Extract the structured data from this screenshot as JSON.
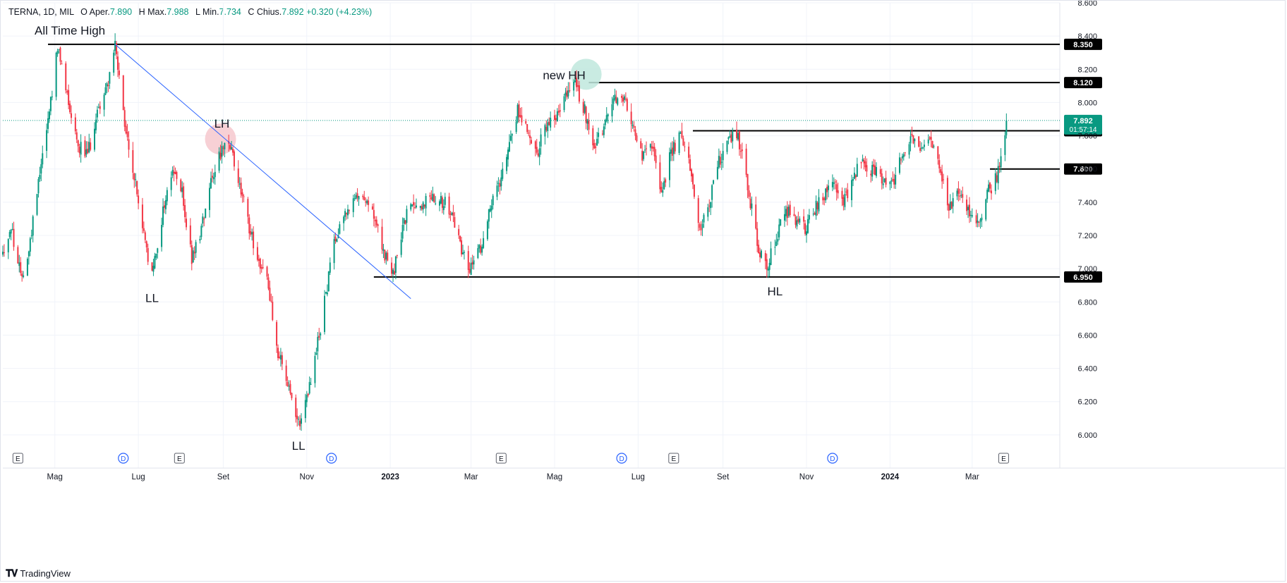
{
  "header": {
    "symbol": "TERNA, 1D, MIL",
    "open_label": "O",
    "open_name": "Aper.",
    "open": "7.890",
    "high_label": "H",
    "high_name": "Max.",
    "high": "7.988",
    "low_label": "L",
    "low_name": "Min.",
    "low": "7.734",
    "close_label": "C",
    "close_name": "Chius.",
    "close": "7.892",
    "change": "+0.320 (+4.23%)"
  },
  "branding": {
    "name": "TradingView"
  },
  "colors": {
    "up": "#089981",
    "down": "#f23645",
    "trendline": "#2962ff",
    "price_line": "#089981",
    "level_line": "#000000",
    "grid": "#f0f3fa"
  },
  "chart_data": {
    "type": "candlestick",
    "ylim": [
      5.8,
      8.6
    ],
    "yticks": [
      "8.600",
      "8.400",
      "8.200",
      "8.000",
      "7.800",
      "7.600",
      "7.400",
      "7.200",
      "7.000",
      "6.800",
      "6.600",
      "6.400",
      "6.200",
      "6.000",
      "5.800"
    ],
    "xlabels": [
      {
        "date": "2022-05-01",
        "label": "Mag"
      },
      {
        "date": "2022-07-01",
        "label": "Lug"
      },
      {
        "date": "2022-09-01",
        "label": "Set"
      },
      {
        "date": "2022-11-01",
        "label": "Nov"
      },
      {
        "date": "2023-01-01",
        "label": "2023",
        "bold": true
      },
      {
        "date": "2023-03-01",
        "label": "Mar"
      },
      {
        "date": "2023-05-01",
        "label": "Mag"
      },
      {
        "date": "2023-07-01",
        "label": "Lug"
      },
      {
        "date": "2023-09-01",
        "label": "Set"
      },
      {
        "date": "2023-11-01",
        "label": "Nov"
      },
      {
        "date": "2024-01-01",
        "label": "2024",
        "bold": true
      },
      {
        "date": "2024-03-01",
        "label": "Mar"
      }
    ],
    "x_domain": [
      "2022-03-24",
      "2024-05-04"
    ],
    "series_path": [
      [
        "2022-03-24",
        7.1
      ],
      [
        "2022-03-30",
        7.25
      ],
      [
        "2022-04-06",
        6.95
      ],
      [
        "2022-04-12",
        7.1
      ],
      [
        "2022-04-19",
        7.55
      ],
      [
        "2022-04-26",
        7.9
      ],
      [
        "2022-05-03",
        8.32
      ],
      [
        "2022-05-10",
        8.05
      ],
      [
        "2022-05-18",
        7.75
      ],
      [
        "2022-05-25",
        7.68
      ],
      [
        "2022-06-01",
        7.95
      ],
      [
        "2022-06-08",
        8.1
      ],
      [
        "2022-06-14",
        8.34
      ],
      [
        "2022-06-21",
        7.85
      ],
      [
        "2022-06-28",
        7.55
      ],
      [
        "2022-07-05",
        7.2
      ],
      [
        "2022-07-11",
        6.95
      ],
      [
        "2022-07-19",
        7.35
      ],
      [
        "2022-07-26",
        7.6
      ],
      [
        "2022-08-02",
        7.45
      ],
      [
        "2022-08-09",
        7.05
      ],
      [
        "2022-08-16",
        7.25
      ],
      [
        "2022-08-23",
        7.55
      ],
      [
        "2022-08-30",
        7.7
      ],
      [
        "2022-09-06",
        7.73
      ],
      [
        "2022-09-13",
        7.5
      ],
      [
        "2022-09-20",
        7.25
      ],
      [
        "2022-09-27",
        7.05
      ],
      [
        "2022-10-04",
        6.9
      ],
      [
        "2022-10-11",
        6.5
      ],
      [
        "2022-10-18",
        6.3
      ],
      [
        "2022-10-25",
        6.05
      ],
      [
        "2022-11-01",
        6.2
      ],
      [
        "2022-11-08",
        6.5
      ],
      [
        "2022-11-15",
        6.85
      ],
      [
        "2022-11-22",
        7.2
      ],
      [
        "2022-11-29",
        7.35
      ],
      [
        "2022-12-06",
        7.4
      ],
      [
        "2022-12-13",
        7.45
      ],
      [
        "2022-12-20",
        7.3
      ],
      [
        "2022-12-27",
        7.1
      ],
      [
        "2023-01-03",
        6.95
      ],
      [
        "2023-01-10",
        7.25
      ],
      [
        "2023-01-17",
        7.4
      ],
      [
        "2023-01-24",
        7.38
      ],
      [
        "2023-01-31",
        7.45
      ],
      [
        "2023-02-07",
        7.42
      ],
      [
        "2023-02-14",
        7.35
      ],
      [
        "2023-02-21",
        7.15
      ],
      [
        "2023-02-28",
        7.0
      ],
      [
        "2023-03-07",
        7.1
      ],
      [
        "2023-03-14",
        7.35
      ],
      [
        "2023-03-21",
        7.5
      ],
      [
        "2023-03-28",
        7.75
      ],
      [
        "2023-04-04",
        7.95
      ],
      [
        "2023-04-11",
        7.85
      ],
      [
        "2023-04-18",
        7.7
      ],
      [
        "2023-04-25",
        7.85
      ],
      [
        "2023-05-02",
        7.9
      ],
      [
        "2023-05-09",
        8.05
      ],
      [
        "2023-05-16",
        8.1
      ],
      [
        "2023-05-23",
        7.95
      ],
      [
        "2023-05-30",
        7.75
      ],
      [
        "2023-06-06",
        7.85
      ],
      [
        "2023-06-13",
        8.0
      ],
      [
        "2023-06-20",
        8.05
      ],
      [
        "2023-06-27",
        7.85
      ],
      [
        "2023-07-04",
        7.65
      ],
      [
        "2023-07-11",
        7.75
      ],
      [
        "2023-07-18",
        7.45
      ],
      [
        "2023-07-25",
        7.7
      ],
      [
        "2023-08-01",
        7.8
      ],
      [
        "2023-08-08",
        7.6
      ],
      [
        "2023-08-15",
        7.25
      ],
      [
        "2023-08-22",
        7.4
      ],
      [
        "2023-08-29",
        7.65
      ],
      [
        "2023-09-05",
        7.78
      ],
      [
        "2023-09-12",
        7.8
      ],
      [
        "2023-09-19",
        7.5
      ],
      [
        "2023-09-26",
        7.15
      ],
      [
        "2023-10-03",
        7.0
      ],
      [
        "2023-10-10",
        7.2
      ],
      [
        "2023-10-17",
        7.35
      ],
      [
        "2023-10-24",
        7.3
      ],
      [
        "2023-10-31",
        7.25
      ],
      [
        "2023-11-07",
        7.35
      ],
      [
        "2023-11-14",
        7.45
      ],
      [
        "2023-11-21",
        7.5
      ],
      [
        "2023-11-28",
        7.4
      ],
      [
        "2023-12-05",
        7.55
      ],
      [
        "2023-12-12",
        7.65
      ],
      [
        "2023-12-19",
        7.6
      ],
      [
        "2023-12-26",
        7.55
      ],
      [
        "2024-01-02",
        7.5
      ],
      [
        "2024-01-09",
        7.65
      ],
      [
        "2024-01-16",
        7.8
      ],
      [
        "2024-01-23",
        7.75
      ],
      [
        "2024-01-30",
        7.8
      ],
      [
        "2024-02-06",
        7.6
      ],
      [
        "2024-02-13",
        7.35
      ],
      [
        "2024-02-20",
        7.45
      ],
      [
        "2024-02-27",
        7.35
      ],
      [
        "2024-03-05",
        7.25
      ],
      [
        "2024-03-12",
        7.45
      ],
      [
        "2024-03-19",
        7.55
      ],
      [
        "2024-03-26",
        7.892
      ]
    ],
    "levels": [
      {
        "value": 8.35,
        "label": "8.350",
        "from": "2022-04-26"
      },
      {
        "value": 8.12,
        "label": "8.120",
        "from": "2023-05-26"
      },
      {
        "value": 7.83,
        "label": "7.830",
        "from": "2023-08-10"
      },
      {
        "value": 7.6,
        "label": "7.600",
        "from": "2024-03-14"
      },
      {
        "value": 6.95,
        "label": "6.950",
        "from": "2022-12-20"
      }
    ],
    "current_price": {
      "value": 7.892,
      "label": "7.892",
      "countdown": "01:57:14",
      "date": "2024-03-26"
    },
    "trendline": {
      "from": [
        "2022-06-14",
        8.35
      ],
      "to": [
        "2023-01-16",
        6.82
      ]
    },
    "annotations": [
      {
        "text": "All Time High",
        "date": "2022-05-12",
        "value": 8.41
      },
      {
        "text": "LH",
        "date": "2022-08-31",
        "value": 7.85
      },
      {
        "text": "LL",
        "date": "2022-07-11",
        "value": 6.8
      },
      {
        "text": "LL",
        "date": "2022-10-26",
        "value": 5.91
      },
      {
        "text": "new HH",
        "date": "2023-05-08",
        "value": 8.14
      },
      {
        "text": "HL",
        "date": "2023-10-09",
        "value": 6.84
      }
    ],
    "highlight_circles": [
      {
        "date": "2022-08-30",
        "value": 7.78,
        "color": "#f6c8ce"
      },
      {
        "date": "2023-05-24",
        "value": 8.17,
        "color": "#bfe7dd"
      }
    ],
    "event_markers": [
      {
        "date": "2022-04-04",
        "type": "E"
      },
      {
        "date": "2022-06-20",
        "type": "D"
      },
      {
        "date": "2022-07-31",
        "type": "E"
      },
      {
        "date": "2022-11-19",
        "type": "D"
      },
      {
        "date": "2023-03-23",
        "type": "E"
      },
      {
        "date": "2023-06-19",
        "type": "D"
      },
      {
        "date": "2023-07-27",
        "type": "E"
      },
      {
        "date": "2023-11-20",
        "type": "D"
      },
      {
        "date": "2024-03-24",
        "type": "E"
      }
    ]
  }
}
